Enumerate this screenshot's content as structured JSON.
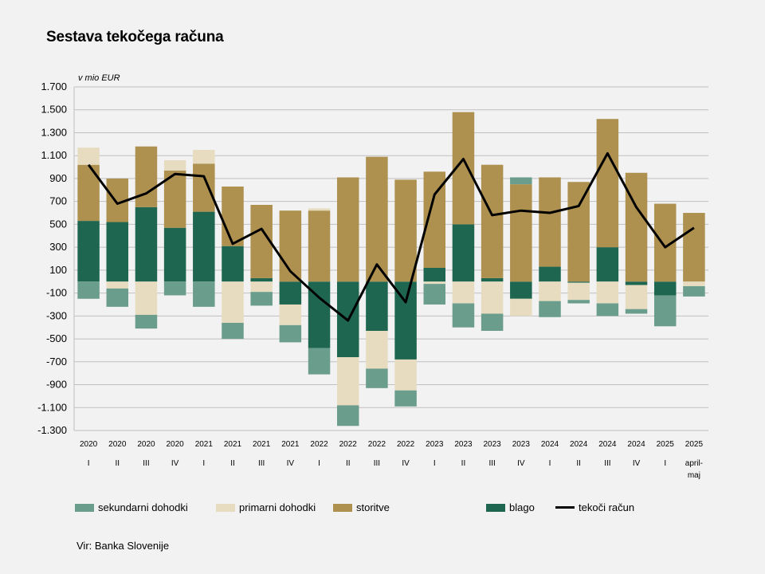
{
  "title": "Sestava tekočega računa",
  "source": "Vir: Banka Slovenije",
  "chart_data": {
    "type": "bar",
    "stacked": true,
    "unit_label": "v mio EUR",
    "ylim": [
      -1300,
      1700
    ],
    "yticks": [
      1700,
      1500,
      1300,
      1100,
      900,
      700,
      500,
      300,
      100,
      -100,
      -300,
      -500,
      -700,
      -900,
      -1100,
      -1300
    ],
    "ytick_labels": [
      "1.700",
      "1.500",
      "1.300",
      "1.100",
      "900",
      "700",
      "500",
      "300",
      "100",
      "-100",
      "-300",
      "-500",
      "-700",
      "-900",
      "-1.100",
      "-1.300"
    ],
    "grid": true,
    "categories": [
      [
        "2020",
        "I"
      ],
      [
        "2020",
        "II"
      ],
      [
        "2020",
        "III"
      ],
      [
        "2020",
        "IV"
      ],
      [
        "2021",
        "I"
      ],
      [
        "2021",
        "II"
      ],
      [
        "2021",
        "III"
      ],
      [
        "2021",
        "IV"
      ],
      [
        "2022",
        "I"
      ],
      [
        "2022",
        "II"
      ],
      [
        "2022",
        "III"
      ],
      [
        "2022",
        "IV"
      ],
      [
        "2023",
        "I"
      ],
      [
        "2023",
        "II"
      ],
      [
        "2023",
        "III"
      ],
      [
        "2023",
        "IV"
      ],
      [
        "2024",
        "I"
      ],
      [
        "2024",
        "II"
      ],
      [
        "2024",
        "III"
      ],
      [
        "2024",
        "IV"
      ],
      [
        "2025",
        "I"
      ],
      [
        "2025",
        "april-",
        "maj"
      ]
    ],
    "series": [
      {
        "name": "blago",
        "color": "#1e6650",
        "values": [
          530,
          520,
          650,
          470,
          610,
          310,
          30,
          -200,
          -580,
          -660,
          -430,
          -680,
          120,
          500,
          30,
          -150,
          130,
          -10,
          300,
          -30,
          -120,
          0
        ]
      },
      {
        "name": "storitve",
        "color": "#ae904f",
        "values": [
          490,
          380,
          530,
          500,
          420,
          520,
          640,
          620,
          620,
          910,
          1090,
          890,
          840,
          980,
          990,
          850,
          780,
          870,
          1120,
          950,
          680,
          600
        ]
      },
      {
        "name": "primarni dohodki",
        "color": "#e7dcc0",
        "values": [
          150,
          -60,
          -290,
          90,
          120,
          -360,
          -90,
          -180,
          20,
          -420,
          -330,
          -270,
          -20,
          -190,
          -280,
          -150,
          -170,
          -150,
          -190,
          -210,
          0,
          -40
        ]
      },
      {
        "name": "sekundarni dohodki",
        "color": "#6b9d8c",
        "values": [
          -150,
          -160,
          -120,
          -120,
          -220,
          -140,
          -120,
          -150,
          -230,
          -180,
          -170,
          -140,
          -180,
          -210,
          -150,
          60,
          -140,
          -30,
          -110,
          -40,
          -270,
          -90
        ]
      }
    ],
    "line": {
      "name": "tekoči račun",
      "color": "#000000",
      "values": [
        1020,
        680,
        770,
        940,
        920,
        330,
        460,
        90,
        -140,
        -340,
        150,
        -180,
        760,
        1070,
        580,
        620,
        600,
        660,
        1120,
        650,
        300,
        470
      ]
    },
    "legend": [
      {
        "name": "sekundarni dohodki",
        "color": "#6b9d8c",
        "kind": "bar"
      },
      {
        "name": "primarni dohodki",
        "color": "#e7dcc0",
        "kind": "bar"
      },
      {
        "name": "storitve",
        "color": "#ae904f",
        "kind": "bar"
      },
      {
        "name": "blago",
        "color": "#1e6650",
        "kind": "bar"
      },
      {
        "name": "tekoči račun",
        "color": "#000000",
        "kind": "line"
      }
    ],
    "legend_placement": "bottom"
  }
}
